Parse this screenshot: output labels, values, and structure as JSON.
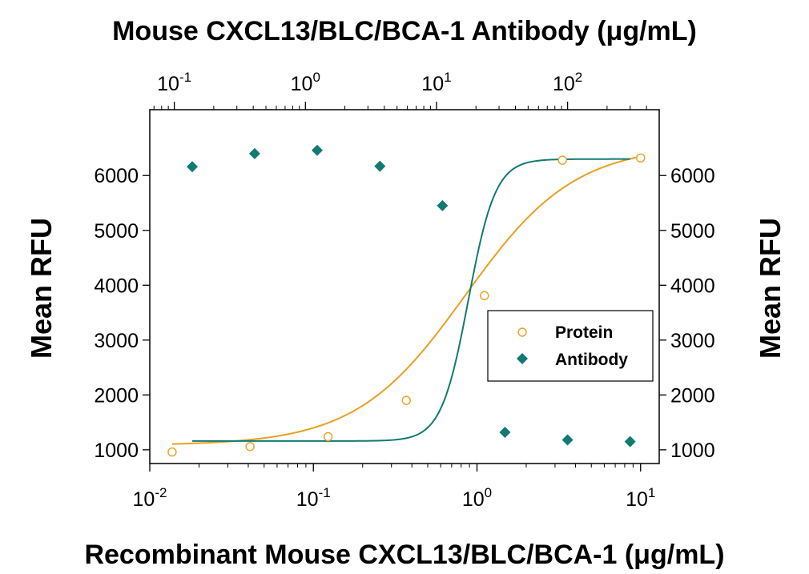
{
  "chart_data": {
    "type": "scatter",
    "title": "",
    "xlabel_bottom": "Recombinant Mouse CXCL13/BLC/BCA-1 (μg/mL)",
    "xlabel_top": "Mouse CXCL13/BLC/BCA-1 Antibody (μg/mL)",
    "ylabel_left": "Mean RFU",
    "ylabel_right": "Mean RFU",
    "x_bottom_scale": "log",
    "x_bottom_range": [
      0.01,
      13
    ],
    "x_top_scale": "log",
    "x_top_range": [
      0.065,
      500
    ],
    "ylim": [
      750,
      7200
    ],
    "x_bottom_ticks": [
      {
        "value": 0.01,
        "base": "10",
        "exp": "-2"
      },
      {
        "value": 0.1,
        "base": "10",
        "exp": "-1"
      },
      {
        "value": 1,
        "base": "10",
        "exp": "0"
      },
      {
        "value": 10,
        "base": "10",
        "exp": "1"
      }
    ],
    "x_top_ticks": [
      {
        "value": 0.1,
        "base": "10",
        "exp": "-1"
      },
      {
        "value": 1,
        "base": "10",
        "exp": "0"
      },
      {
        "value": 10,
        "base": "10",
        "exp": "1"
      },
      {
        "value": 100,
        "base": "10",
        "exp": "2"
      }
    ],
    "y_ticks": [
      1000,
      2000,
      3000,
      4000,
      5000,
      6000
    ],
    "grid": false,
    "legend_position": "right-center",
    "series": [
      {
        "name": "Protein",
        "axis": "bottom",
        "marker": "open-circle",
        "color": "#E8A020",
        "x": [
          0.0137,
          0.041,
          0.123,
          0.37,
          1.11,
          3.33,
          10
        ],
        "y": [
          960,
          1060,
          1240,
          1900,
          3810,
          6280,
          6320
        ],
        "fit": {
          "bottom": 1080,
          "top": 6560,
          "ec50": 0.85,
          "hill": 1.3
        }
      },
      {
        "name": "Antibody",
        "axis": "top",
        "marker": "filled-diamond",
        "color": "#117A73",
        "x": [
          0.137,
          0.41,
          1.23,
          3.7,
          11.1,
          33.3,
          100,
          300
        ],
        "y": [
          6160,
          6400,
          6460,
          6170,
          5450,
          1320,
          1180,
          1150
        ],
        "fit": {
          "bottom": 1160,
          "top": 6300,
          "ec50": 17.5,
          "hill": 4.2
        }
      }
    ]
  }
}
